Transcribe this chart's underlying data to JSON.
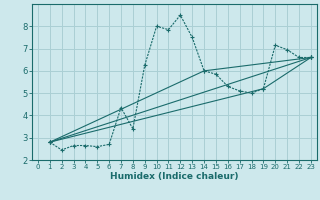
{
  "xlabel": "Humidex (Indice chaleur)",
  "xlim": [
    -0.5,
    23.5
  ],
  "ylim": [
    2,
    9
  ],
  "yticks": [
    2,
    3,
    4,
    5,
    6,
    7,
    8
  ],
  "xticks": [
    0,
    1,
    2,
    3,
    4,
    5,
    6,
    7,
    8,
    9,
    10,
    11,
    12,
    13,
    14,
    15,
    16,
    17,
    18,
    19,
    20,
    21,
    22,
    23
  ],
  "background_color": "#cde8ec",
  "grid_color": "#aacfd4",
  "line_color": "#1a6b6b",
  "series": [
    {
      "x": [
        1,
        2,
        3,
        4,
        5,
        6,
        7,
        8,
        9,
        10,
        11,
        12,
        13,
        14,
        15,
        16,
        17,
        18,
        19,
        20,
        21,
        22,
        23
      ],
      "y": [
        2.8,
        2.45,
        2.65,
        2.65,
        2.6,
        2.7,
        4.35,
        3.4,
        6.25,
        8.0,
        7.85,
        8.5,
        7.5,
        6.0,
        5.85,
        5.3,
        5.1,
        5.0,
        5.2,
        7.15,
        6.95,
        6.6,
        6.6
      ],
      "dotted": true
    },
    {
      "x": [
        1,
        23
      ],
      "y": [
        2.8,
        6.6
      ],
      "dotted": false
    },
    {
      "x": [
        1,
        14,
        23
      ],
      "y": [
        2.8,
        6.0,
        6.6
      ],
      "dotted": false
    },
    {
      "x": [
        1,
        19,
        23
      ],
      "y": [
        2.8,
        5.2,
        6.6
      ],
      "dotted": false
    }
  ]
}
